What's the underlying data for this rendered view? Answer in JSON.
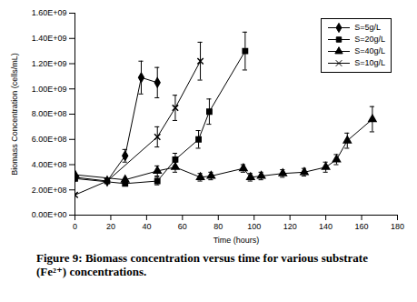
{
  "chart_data": {
    "type": "line",
    "caption": "Figure 9: Biomass concentration versus time for various substrate (Fe²⁺) concentrations.",
    "x_label": "Time (hours)",
    "y_label": "Biomass Concentration (cells/mL)",
    "xlim": [
      0,
      180
    ],
    "xticks": [
      0,
      20,
      40,
      60,
      80,
      100,
      120,
      140,
      160,
      180
    ],
    "ylim": [
      0,
      1600000000
    ],
    "yticks": [
      {
        "value": 0,
        "label": "0.00E+00"
      },
      {
        "value": 200000000,
        "label": "2.00E+08"
      },
      {
        "value": 400000000,
        "label": "4.00E+08"
      },
      {
        "value": 600000000,
        "label": "6.00E+08"
      },
      {
        "value": 800000000,
        "label": "8.00E+08"
      },
      {
        "value": 1000000000,
        "label": "1.00E+09"
      },
      {
        "value": 1200000000,
        "label": "1.20E+09"
      },
      {
        "value": 1400000000,
        "label": "1.40E+09"
      },
      {
        "value": 1600000000,
        "label": "1.60E+09"
      }
    ],
    "grid": false,
    "legend": "top-right",
    "series": [
      {
        "name": "S=5g/L",
        "color": "#000000",
        "marker": "diamond",
        "line_style": "solid",
        "x": [
          0,
          18,
          28,
          37,
          46
        ],
        "values": [
          300000000,
          270000000,
          470000000,
          1090000000,
          1050000000
        ],
        "errors": [
          null,
          null,
          50000000,
          130000000,
          120000000
        ]
      },
      {
        "name": "S=20g/L",
        "color": "#000000",
        "marker": "square",
        "line_style": "solid",
        "x": [
          0,
          28,
          46,
          56,
          69,
          75,
          95
        ],
        "values": [
          290000000,
          250000000,
          270000000,
          440000000,
          600000000,
          820000000,
          1300000000
        ],
        "errors": [
          null,
          null,
          30000000,
          50000000,
          70000000,
          100000000,
          150000000
        ]
      },
      {
        "name": "S=40g/L",
        "color": "#000000",
        "marker": "triangle",
        "line_style": "solid",
        "x": [
          0,
          28,
          46,
          56,
          70,
          76,
          94,
          98,
          104,
          116,
          128,
          140,
          146,
          152,
          166
        ],
        "values": [
          320000000,
          280000000,
          350000000,
          380000000,
          300000000,
          310000000,
          370000000,
          300000000,
          310000000,
          330000000,
          340000000,
          380000000,
          440000000,
          590000000,
          760000000
        ],
        "errors": [
          null,
          null,
          40000000,
          40000000,
          30000000,
          30000000,
          30000000,
          30000000,
          30000000,
          30000000,
          30000000,
          40000000,
          40000000,
          60000000,
          100000000
        ]
      },
      {
        "name": "S=10g/L",
        "color": "#000000",
        "marker": "times",
        "line_style": "solid",
        "x": [
          0,
          18,
          46,
          56,
          70
        ],
        "values": [
          160000000,
          270000000,
          620000000,
          850000000,
          1220000000
        ],
        "errors": [
          null,
          null,
          80000000,
          100000000,
          150000000
        ]
      }
    ]
  }
}
